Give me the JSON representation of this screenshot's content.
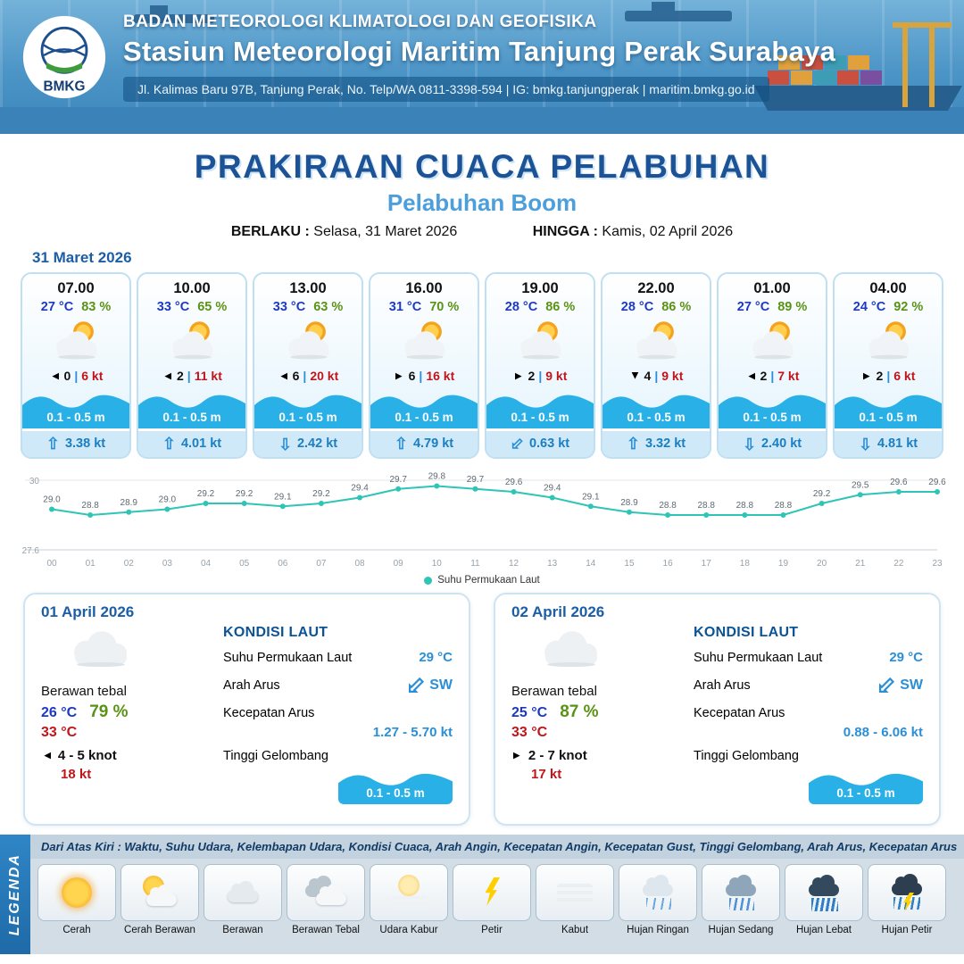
{
  "header": {
    "logo_text": "BMKG",
    "agency": "BADAN METEOROLOGI KLIMATOLOGI DAN GEOFISIKA",
    "station": "Stasiun Meteorologi Maritim Tanjung Perak Surabaya",
    "address": "Jl. Kalimas Baru 97B, Tanjung Perak, No. Telp/WA 0811-3398-594 | IG: bmkg.tanjungperak | maritim.bmkg.go.id"
  },
  "title": {
    "main": "PRAKIRAAN CUACA PELABUHAN",
    "port": "Pelabuhan Boom",
    "berlaku_label": "BERLAKU :",
    "berlaku": "Selasa, 31 Maret 2026",
    "hingga_label": "HINGGA :",
    "hingga": "Kamis, 02 April 2026"
  },
  "forecast_date": "31 Maret 2026",
  "hourly": [
    {
      "time": "07.00",
      "temp": "27 °C",
      "rh": "83 %",
      "wind_dir": "w",
      "wind_val": "0",
      "wind_gust": "6 kt",
      "wave": "0.1 - 0.5 m",
      "cur_dir": "n",
      "cur": "3.38 kt"
    },
    {
      "time": "10.00",
      "temp": "33 °C",
      "rh": "65 %",
      "wind_dir": "w",
      "wind_val": "2",
      "wind_gust": "11 kt",
      "wave": "0.1 - 0.5 m",
      "cur_dir": "n",
      "cur": "4.01 kt"
    },
    {
      "time": "13.00",
      "temp": "33 °C",
      "rh": "63 %",
      "wind_dir": "w",
      "wind_val": "6",
      "wind_gust": "20 kt",
      "wave": "0.1 - 0.5 m",
      "cur_dir": "s",
      "cur": "2.42 kt"
    },
    {
      "time": "16.00",
      "temp": "31 °C",
      "rh": "70 %",
      "wind_dir": "e",
      "wind_val": "6",
      "wind_gust": "16 kt",
      "wave": "0.1 - 0.5 m",
      "cur_dir": "n",
      "cur": "4.79 kt"
    },
    {
      "time": "19.00",
      "temp": "28 °C",
      "rh": "86 %",
      "wind_dir": "e",
      "wind_val": "2",
      "wind_gust": "9 kt",
      "wave": "0.1 - 0.5 m",
      "cur_dir": "sw",
      "cur": "0.63 kt"
    },
    {
      "time": "22.00",
      "temp": "28 °C",
      "rh": "86 %",
      "wind_dir": "s",
      "wind_val": "4",
      "wind_gust": "9 kt",
      "wave": "0.1 - 0.5 m",
      "cur_dir": "n",
      "cur": "3.32 kt"
    },
    {
      "time": "01.00",
      "temp": "27 °C",
      "rh": "89 %",
      "wind_dir": "w",
      "wind_val": "2",
      "wind_gust": "7 kt",
      "wave": "0.1 - 0.5 m",
      "cur_dir": "s",
      "cur": "2.40 kt"
    },
    {
      "time": "04.00",
      "temp": "24 °C",
      "rh": "92 %",
      "wind_dir": "e",
      "wind_val": "2",
      "wind_gust": "6 kt",
      "wave": "0.1 - 0.5 m",
      "cur_dir": "s",
      "cur": "4.81 kt"
    }
  ],
  "chart_data": {
    "type": "line",
    "legend": "Suhu Permukaan Laut",
    "x": [
      "00",
      "01",
      "02",
      "03",
      "04",
      "05",
      "06",
      "07",
      "08",
      "09",
      "10",
      "11",
      "12",
      "13",
      "14",
      "15",
      "16",
      "17",
      "18",
      "19",
      "20",
      "21",
      "22",
      "23"
    ],
    "values": [
      29.0,
      28.8,
      28.9,
      29.0,
      29.2,
      29.2,
      29.1,
      29.2,
      29.4,
      29.7,
      29.8,
      29.7,
      29.6,
      29.4,
      29.1,
      28.9,
      28.8,
      28.8,
      28.8,
      28.8,
      29.2,
      29.5,
      29.6,
      29.6
    ],
    "ylim": [
      27.6,
      30
    ],
    "line_color": "#2ec4b6",
    "grid": true,
    "legend_position": "bottom"
  },
  "daily": [
    {
      "date": "01 April 2026",
      "cond": "Berawan tebal",
      "tmin": "26 °C",
      "rh": "79 %",
      "tmax": "33 °C",
      "wind_dir": "w",
      "wind": "4 - 5 knot",
      "gust": "18 kt",
      "sea": {
        "title": "KONDISI LAUT",
        "sst_label": "Suhu Permukaan Laut",
        "sst": "29 °C",
        "arus_label": "Arah Arus",
        "arus_dir": "SW",
        "arus_dir_token": "sw",
        "kec_label": "Kecepatan Arus",
        "kec": "1.27  - 5.70 kt",
        "gel_label": "Tinggi Gelombang",
        "gel": "0.1 - 0.5 m"
      }
    },
    {
      "date": "02 April 2026",
      "cond": "Berawan tebal",
      "tmin": "25 °C",
      "rh": "87 %",
      "tmax": "33 °C",
      "wind_dir": "e",
      "wind": "2  - 7 knot",
      "gust": "17 kt",
      "sea": {
        "title": "KONDISI LAUT",
        "sst_label": "Suhu Permukaan Laut",
        "sst": "29 °C",
        "arus_label": "Arah Arus",
        "arus_dir": "SW",
        "arus_dir_token": "sw",
        "kec_label": "Kecepatan Arus",
        "kec": "0.88 - 6.06 kt",
        "gel_label": "Tinggi Gelombang",
        "gel": "0.1 - 0.5 m"
      }
    }
  ],
  "legend": {
    "ribbon": "LEGENDA",
    "note": "Dari Atas Kiri : Waktu, Suhu Udara, Kelembapan Udara, Kondisi Cuaca, Arah Angin, Kecepatan Angin, Kecepatan Gust, Tinggi Gelombang, Arah Arus, Kecepatan Arus",
    "items": [
      {
        "label": "Cerah",
        "icon": "sun"
      },
      {
        "label": "Cerah Berawan",
        "icon": "sun-cloud"
      },
      {
        "label": "Berawan",
        "icon": "cloud"
      },
      {
        "label": "Berawan Tebal",
        "icon": "clouds"
      },
      {
        "label": "Udara Kabur",
        "icon": "haze"
      },
      {
        "label": "Petir",
        "icon": "bolt"
      },
      {
        "label": "Kabut",
        "icon": "fog"
      },
      {
        "label": "Hujan Ringan",
        "icon": "rain-light"
      },
      {
        "label": "Hujan Sedang",
        "icon": "rain-medium"
      },
      {
        "label": "Hujan Lebat",
        "icon": "rain-heavy"
      },
      {
        "label": "Hujan Petir",
        "icon": "storm"
      }
    ]
  },
  "colors": {
    "header_blue": "#4b94c6",
    "title_navy": "#1c5396",
    "port_blue": "#4d9fdc",
    "temp_blue": "#1d39c4",
    "humidity_green": "#5a9216",
    "alert_red": "#c0151a",
    "wave_blue": "#29b0e6",
    "accent_blue": "#2b8fd8",
    "sst_line_teal": "#2ec4b6"
  }
}
